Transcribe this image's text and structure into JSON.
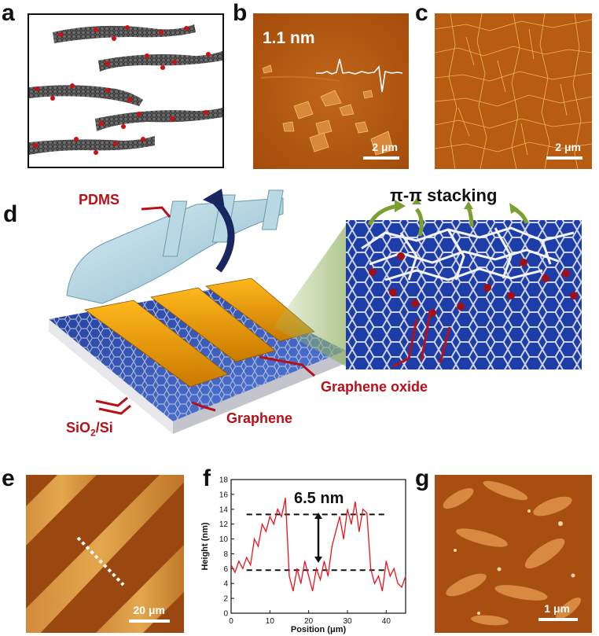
{
  "panels": {
    "a": {
      "label": "a"
    },
    "b": {
      "label": "b",
      "height_annotation": "1.1 nm",
      "scale_bar": "2 μm"
    },
    "c": {
      "label": "c",
      "scale_bar": "2 μm"
    },
    "d": {
      "label": "d",
      "pdms": "PDMS",
      "stacking": "π-π stacking",
      "graphene_oxide": "Graphene oxide",
      "graphene": "Graphene",
      "substrate_main": "SiO",
      "substrate_sub": "2",
      "substrate_tail": "/Si"
    },
    "e": {
      "label": "e",
      "scale_bar": "20 μm"
    },
    "f": {
      "label": "f",
      "step_annotation": "6.5 nm"
    },
    "g": {
      "label": "g",
      "scale_bar": "1 μm"
    }
  },
  "chart_data": {
    "type": "line",
    "xlabel": "Position (μm)",
    "ylabel": "Height (nm)",
    "xlim": [
      0,
      45
    ],
    "ylim": [
      0,
      18
    ],
    "xticks": [
      0,
      10,
      20,
      30,
      40
    ],
    "yticks": [
      0,
      2,
      4,
      6,
      8,
      10,
      12,
      14,
      16,
      18
    ],
    "x": [
      0,
      1,
      2,
      3,
      4,
      5,
      6,
      7,
      8,
      9,
      10,
      11,
      12,
      13,
      14,
      15,
      16,
      17,
      18,
      19,
      20,
      21,
      22,
      23,
      24,
      25,
      26,
      27,
      28,
      29,
      30,
      31,
      32,
      33,
      34,
      35,
      36,
      37,
      38,
      39,
      40,
      41,
      42,
      43,
      44,
      45
    ],
    "y": [
      6.5,
      5.5,
      7,
      6,
      7.5,
      6.5,
      10,
      9,
      12,
      11,
      13,
      12,
      14,
      13,
      15.5,
      5,
      3,
      6,
      4,
      7,
      5,
      3,
      6,
      4.5,
      7,
      5,
      9,
      11,
      13,
      10,
      14,
      12,
      15,
      11,
      14,
      13.5,
      6,
      4,
      5,
      3,
      7,
      5,
      6,
      4,
      3.5,
      5
    ],
    "reference_lines": [
      13.3,
      5.8
    ]
  },
  "colors": {
    "afm_dark": "#6b2a04",
    "afm_mid": "#b45a12",
    "afm_light": "#f0b050",
    "trace": "#e8141c",
    "accent_red": "#c0141c"
  }
}
